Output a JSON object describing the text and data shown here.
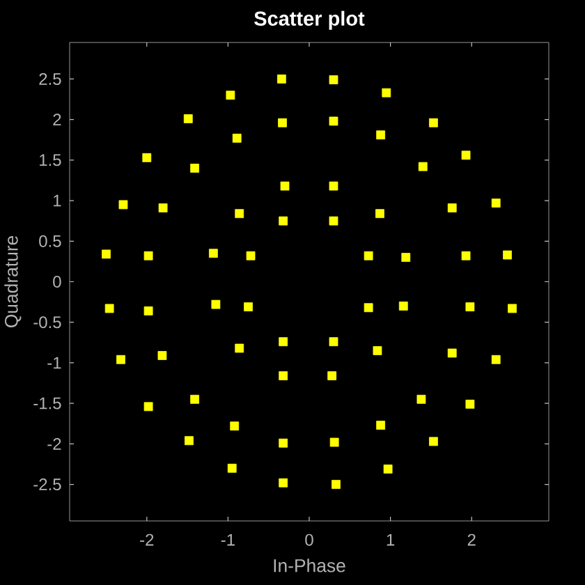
{
  "chart_data": {
    "type": "scatter",
    "title": "Scatter plot",
    "xlabel": "In-Phase",
    "ylabel": "Quadrature",
    "x": [
      0.3,
      -0.32,
      -0.72,
      -0.75,
      -0.32,
      0.3,
      0.73,
      0.73,
      0.3,
      -0.3,
      -0.86,
      -1.18,
      -1.15,
      -0.86,
      -0.32,
      0.28,
      0.84,
      1.16,
      1.19,
      0.87,
      0.3,
      -0.33,
      -0.89,
      -1.41,
      -1.8,
      -1.98,
      -1.98,
      -1.81,
      -1.41,
      -0.92,
      -0.32,
      0.31,
      0.88,
      1.38,
      1.76,
      1.98,
      1.93,
      1.76,
      1.4,
      0.88,
      0.3,
      -0.34,
      -0.97,
      -1.49,
      -2.0,
      -2.29,
      -2.5,
      -2.46,
      -2.32,
      -1.98,
      -1.48,
      -0.95,
      -0.32,
      0.33,
      0.97,
      1.53,
      1.98,
      2.3,
      2.5,
      2.44,
      2.3,
      1.93,
      1.53,
      0.95
    ],
    "values": [
      0.75,
      0.75,
      0.32,
      -0.31,
      -0.74,
      -0.74,
      -0.32,
      0.32,
      1.18,
      1.18,
      0.84,
      0.35,
      -0.28,
      -0.82,
      -1.16,
      -1.16,
      -0.85,
      -0.3,
      0.3,
      0.84,
      1.98,
      1.96,
      1.77,
      1.4,
      0.91,
      0.32,
      -0.36,
      -0.91,
      -1.45,
      -1.78,
      -1.99,
      -1.98,
      -1.77,
      -1.45,
      -0.88,
      -0.31,
      0.32,
      0.91,
      1.42,
      1.81,
      2.49,
      2.5,
      2.3,
      2.01,
      1.53,
      0.95,
      0.34,
      -0.33,
      -0.96,
      -1.54,
      -1.96,
      -2.3,
      -2.48,
      -2.5,
      -2.31,
      -1.97,
      -1.51,
      -0.96,
      -0.33,
      0.33,
      0.97,
      1.56,
      1.96,
      2.33
    ],
    "color": "#ffff00",
    "marker": "square",
    "xlim": [
      -2.95,
      2.95
    ],
    "ylim": [
      -2.95,
      2.95
    ],
    "xticks": [
      -2,
      -1,
      0,
      1,
      2
    ],
    "yticks": [
      -2.5,
      -2,
      -1.5,
      -1,
      -0.5,
      0,
      0.5,
      1,
      1.5,
      2,
      2.5
    ]
  }
}
